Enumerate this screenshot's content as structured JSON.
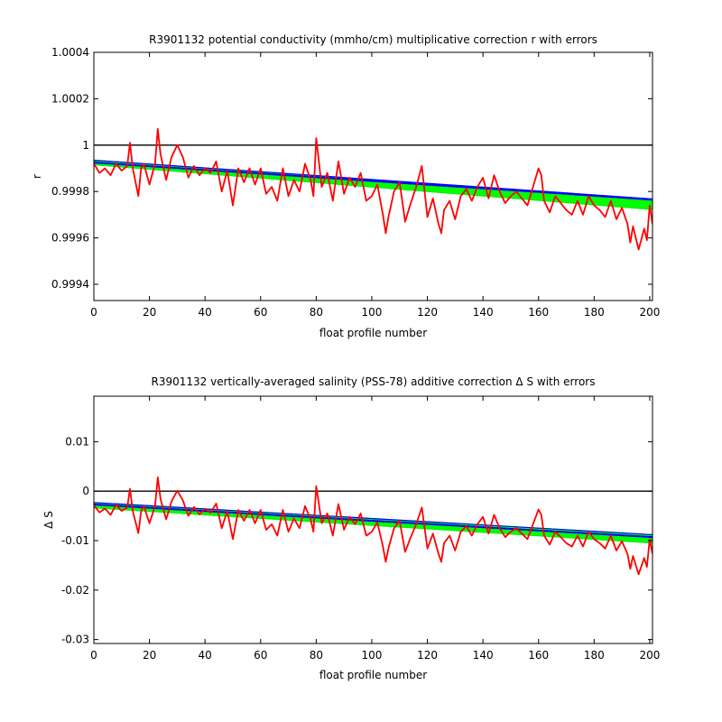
{
  "chart_data": [
    {
      "type": "line",
      "title": "R3901132 potential conductivity (mmho/cm) multiplicative correction r with errors",
      "xlabel": "float profile number",
      "ylabel": "r",
      "xlim": [
        0,
        201
      ],
      "ylim": [
        0.99933,
        1.0004
      ],
      "xticks": [
        0,
        20,
        40,
        60,
        80,
        100,
        120,
        140,
        160,
        180,
        200
      ],
      "yticks": [
        0.9994,
        0.9996,
        0.9998,
        1,
        1.0002,
        1.0004
      ],
      "ytick_labels": [
        "0.9994",
        "0.9996",
        "0.9998",
        "1",
        "1.0002",
        "1.0004"
      ],
      "reference_line": 1,
      "fit_line": {
        "x": [
          0,
          201
        ],
        "y": [
          0.999925,
          0.999765
        ]
      },
      "error_band": {
        "x": [
          0,
          201
        ],
        "upper": [
          0.999935,
          0.999768
        ],
        "lower": [
          0.999915,
          0.999722
        ]
      },
      "series": [
        {
          "color": "#ff0000",
          "x": [
            0,
            2,
            4,
            6,
            8,
            10,
            12,
            13,
            14,
            16,
            17,
            18,
            20,
            22,
            23,
            24,
            26,
            28,
            30,
            32,
            34,
            36,
            38,
            40,
            42,
            44,
            46,
            48,
            50,
            52,
            54,
            56,
            58,
            60,
            62,
            64,
            66,
            68,
            70,
            72,
            74,
            76,
            78,
            79,
            80,
            82,
            84,
            86,
            88,
            90,
            92,
            94,
            96,
            98,
            100,
            102,
            104,
            105,
            106,
            108,
            110,
            112,
            114,
            116,
            118,
            120,
            122,
            124,
            125,
            126,
            128,
            130,
            132,
            134,
            136,
            138,
            140,
            142,
            144,
            146,
            148,
            150,
            152,
            154,
            156,
            158,
            160,
            161,
            162,
            164,
            166,
            168,
            170,
            172,
            174,
            176,
            178,
            180,
            182,
            184,
            186,
            188,
            190,
            192,
            193,
            194,
            196,
            198,
            199,
            200,
            201
          ],
          "y": [
            0.99992,
            0.99988,
            0.9999,
            0.99987,
            0.99992,
            0.99989,
            0.99991,
            1.00001,
            0.9999,
            0.99978,
            0.9999,
            0.99992,
            0.99983,
            0.99992,
            1.00007,
            0.99996,
            0.99985,
            0.99995,
            1.0,
            0.99995,
            0.99986,
            0.99991,
            0.99987,
            0.9999,
            0.99988,
            0.99993,
            0.9998,
            0.99989,
            0.99974,
            0.9999,
            0.99984,
            0.9999,
            0.99983,
            0.9999,
            0.99979,
            0.99982,
            0.99976,
            0.9999,
            0.99978,
            0.99985,
            0.9998,
            0.99992,
            0.99985,
            0.99978,
            1.00003,
            0.99982,
            0.99988,
            0.99976,
            0.99993,
            0.99979,
            0.99986,
            0.99982,
            0.99988,
            0.99976,
            0.99978,
            0.99983,
            0.9997,
            0.99962,
            0.99969,
            0.9998,
            0.99984,
            0.99967,
            0.99975,
            0.99982,
            0.99991,
            0.99969,
            0.99977,
            0.99966,
            0.99962,
            0.99972,
            0.99976,
            0.99968,
            0.99978,
            0.99981,
            0.99976,
            0.99982,
            0.99986,
            0.99977,
            0.99987,
            0.9998,
            0.99975,
            0.99978,
            0.9998,
            0.99977,
            0.99974,
            0.99982,
            0.9999,
            0.99987,
            0.99976,
            0.99971,
            0.99978,
            0.99975,
            0.99972,
            0.9997,
            0.99976,
            0.9997,
            0.99978,
            0.99974,
            0.99972,
            0.99969,
            0.99976,
            0.99968,
            0.99973,
            0.99966,
            0.99958,
            0.99965,
            0.99955,
            0.99964,
            0.99959,
            0.99974,
            0.99966
          ]
        }
      ]
    },
    {
      "type": "line",
      "title": "R3901132 vertically-averaged salinity (PSS-78) additive correction Δ S with errors",
      "xlabel": "float profile number",
      "ylabel": "Δ S",
      "xlim": [
        0,
        201
      ],
      "ylim": [
        -0.0308,
        0.0192
      ],
      "xticks": [
        0,
        20,
        40,
        60,
        80,
        100,
        120,
        140,
        160,
        180,
        200
      ],
      "yticks": [
        -0.03,
        -0.02,
        -0.01,
        0,
        0.01
      ],
      "ytick_labels": [
        "-0.03",
        "-0.02",
        "-0.01",
        "0",
        "0.01"
      ],
      "reference_line": 0,
      "fit_line": {
        "x": [
          0,
          201
        ],
        "y": [
          -0.0027,
          -0.0093
        ]
      },
      "error_band": {
        "x": [
          0,
          201
        ],
        "upper": [
          -0.0023,
          -0.0088
        ],
        "lower": [
          -0.0034,
          -0.0105
        ]
      },
      "series": [
        {
          "color": "#ff0000",
          "x": [
            0,
            2,
            4,
            6,
            8,
            10,
            12,
            13,
            14,
            16,
            17,
            18,
            20,
            22,
            23,
            24,
            26,
            28,
            30,
            32,
            34,
            36,
            38,
            40,
            42,
            44,
            46,
            48,
            50,
            52,
            54,
            56,
            58,
            60,
            62,
            64,
            66,
            68,
            70,
            72,
            74,
            76,
            78,
            79,
            80,
            82,
            84,
            86,
            88,
            90,
            92,
            94,
            96,
            98,
            100,
            102,
            104,
            105,
            106,
            108,
            110,
            112,
            114,
            116,
            118,
            120,
            122,
            124,
            125,
            126,
            128,
            130,
            132,
            134,
            136,
            138,
            140,
            142,
            144,
            146,
            148,
            150,
            152,
            154,
            156,
            158,
            160,
            161,
            162,
            164,
            166,
            168,
            170,
            172,
            174,
            176,
            178,
            180,
            182,
            184,
            186,
            188,
            190,
            192,
            193,
            194,
            196,
            198,
            199,
            200,
            201
          ],
          "y": [
            -0.0028,
            -0.0043,
            -0.0035,
            -0.0048,
            -0.0028,
            -0.004,
            -0.0033,
            0.0005,
            -0.004,
            -0.0085,
            -0.004,
            -0.003,
            -0.0065,
            -0.003,
            0.0028,
            -0.0016,
            -0.0057,
            -0.002,
            0.0001,
            -0.0018,
            -0.005,
            -0.0032,
            -0.0047,
            -0.0036,
            -0.0044,
            -0.0025,
            -0.0075,
            -0.004,
            -0.0097,
            -0.0038,
            -0.006,
            -0.0038,
            -0.0065,
            -0.0038,
            -0.0078,
            -0.0067,
            -0.009,
            -0.0038,
            -0.0082,
            -0.0055,
            -0.0075,
            -0.003,
            -0.0057,
            -0.0082,
            0.001,
            -0.0065,
            -0.0045,
            -0.009,
            -0.0026,
            -0.0078,
            -0.0052,
            -0.0067,
            -0.0045,
            -0.009,
            -0.0082,
            -0.0063,
            -0.0112,
            -0.0143,
            -0.0116,
            -0.0075,
            -0.006,
            -0.0123,
            -0.0093,
            -0.0067,
            -0.0033,
            -0.0116,
            -0.0086,
            -0.0127,
            -0.0143,
            -0.0105,
            -0.009,
            -0.012,
            -0.0082,
            -0.0071,
            -0.009,
            -0.0067,
            -0.0052,
            -0.0086,
            -0.0048,
            -0.0075,
            -0.0093,
            -0.0082,
            -0.0075,
            -0.0086,
            -0.0097,
            -0.0067,
            -0.0037,
            -0.0048,
            -0.009,
            -0.0108,
            -0.0082,
            -0.0093,
            -0.0105,
            -0.0112,
            -0.009,
            -0.0112,
            -0.0082,
            -0.0097,
            -0.0105,
            -0.0116,
            -0.009,
            -0.012,
            -0.0101,
            -0.0127,
            -0.0157,
            -0.0131,
            -0.0168,
            -0.0135,
            -0.0153,
            -0.0097,
            -0.0127
          ]
        }
      ]
    }
  ]
}
